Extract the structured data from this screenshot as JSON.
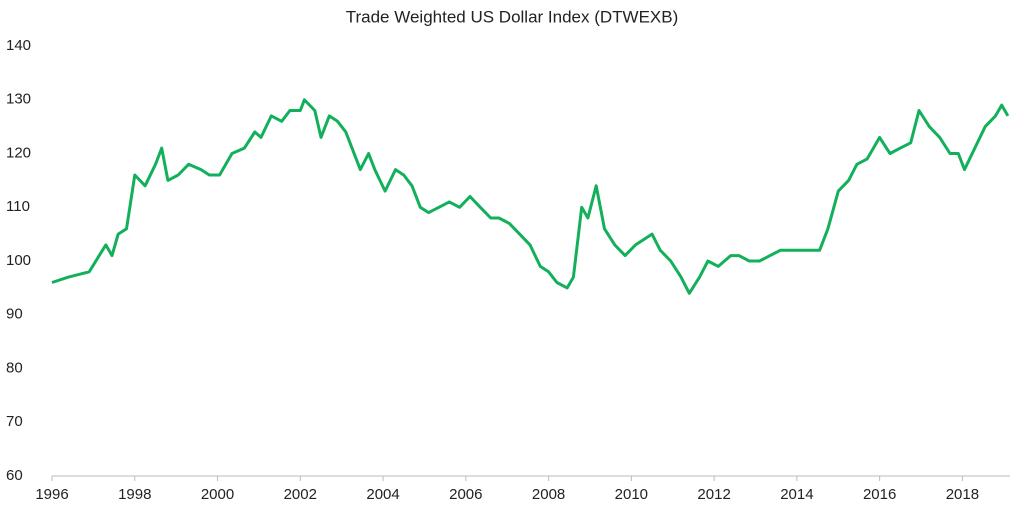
{
  "chart_data": {
    "type": "line",
    "title": "Trade Weighted US Dollar Index (DTWEXB)",
    "x": [
      1996.0,
      1996.4,
      1996.9,
      1997.3,
      1997.45,
      1997.6,
      1997.8,
      1998.0,
      1998.25,
      1998.5,
      1998.65,
      1998.8,
      1999.05,
      1999.3,
      1999.6,
      1999.8,
      2000.05,
      2000.35,
      2000.65,
      2000.9,
      2001.05,
      2001.3,
      2001.55,
      2001.75,
      2002.0,
      2002.1,
      2002.35,
      2002.5,
      2002.7,
      2002.9,
      2003.1,
      2003.25,
      2003.45,
      2003.65,
      2003.8,
      2004.05,
      2004.3,
      2004.5,
      2004.7,
      2004.9,
      2005.1,
      2005.35,
      2005.6,
      2005.85,
      2006.1,
      2006.35,
      2006.6,
      2006.8,
      2007.05,
      2007.3,
      2007.55,
      2007.8,
      2008.0,
      2008.2,
      2008.45,
      2008.6,
      2008.8,
      2008.95,
      2009.15,
      2009.35,
      2009.6,
      2009.85,
      2010.1,
      2010.3,
      2010.5,
      2010.7,
      2010.95,
      2011.2,
      2011.4,
      2011.65,
      2011.85,
      2012.1,
      2012.4,
      2012.6,
      2012.85,
      2013.1,
      2013.35,
      2013.6,
      2013.8,
      2014.05,
      2014.3,
      2014.55,
      2014.75,
      2015.0,
      2015.25,
      2015.45,
      2015.7,
      2016.0,
      2016.25,
      2016.5,
      2016.75,
      2016.95,
      2017.2,
      2017.45,
      2017.7,
      2017.9,
      2018.05,
      2018.3,
      2018.55,
      2018.8,
      2018.95,
      2019.1
    ],
    "series": [
      {
        "name": "DTWEXB",
        "color": "#13b05b",
        "values": [
          96,
          97,
          98,
          103,
          101,
          105,
          106,
          116,
          114,
          118,
          121,
          115,
          116,
          118,
          117,
          116,
          116,
          120,
          121,
          124,
          123,
          127,
          126,
          128,
          128,
          130,
          128,
          123,
          127,
          126,
          124,
          121,
          117,
          120,
          117,
          113,
          117,
          116,
          114,
          110,
          109,
          110,
          111,
          110,
          112,
          110,
          108,
          108,
          107,
          105,
          103,
          99,
          98,
          96,
          95,
          97,
          110,
          108,
          114,
          106,
          103,
          101,
          103,
          104,
          105,
          102,
          100,
          97,
          94,
          97,
          100,
          99,
          101,
          101,
          100,
          100,
          101,
          102,
          102,
          102,
          102,
          102,
          106,
          113,
          115,
          118,
          119,
          123,
          120,
          121,
          122,
          128,
          125,
          123,
          120,
          120,
          117,
          121,
          125,
          127,
          129,
          127
        ]
      }
    ],
    "xlim": [
      1996,
      2019.15
    ],
    "xticks": [
      1996,
      1998,
      2000,
      2002,
      2004,
      2006,
      2008,
      2010,
      2012,
      2014,
      2016,
      2018
    ],
    "ylim": [
      60,
      140
    ],
    "yticks": [
      60,
      70,
      80,
      90,
      100,
      110,
      120,
      130,
      140
    ]
  }
}
